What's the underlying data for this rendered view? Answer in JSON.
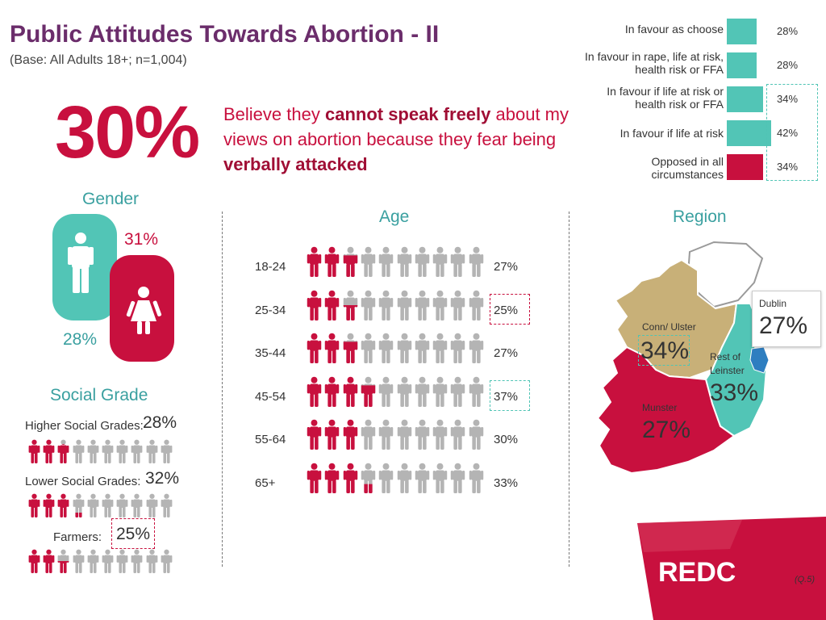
{
  "header": {
    "title": "Public Attitudes Towards Abortion - II",
    "subtitle": "(Base: All Adults 18+; n=1,004)"
  },
  "headline": {
    "big_stat": "30%",
    "part1": "Believe they ",
    "bold1": "cannot speak freely",
    "part2": " about my views on abortion because they fear being ",
    "bold2": "verbally attacked"
  },
  "colors": {
    "red": "#c8103e",
    "teal": "#52c5b6",
    "grey": "#b4b4b4",
    "purple": "#6b2d6b",
    "tan": "#c8b078"
  },
  "chart_data": [
    {
      "type": "bar",
      "categories": [
        "In favour as choose",
        "In favour in rape, life at risk, health risk or FFA",
        "In favour if life at risk or health risk or FFA",
        "In favour if life at risk",
        "Opposed in all circumstances"
      ],
      "values": [
        28,
        28,
        34,
        42,
        34
      ],
      "value_labels": [
        "28%",
        "28%",
        "34%",
        "42%",
        "34%"
      ],
      "colors": [
        "#52c5b6",
        "#52c5b6",
        "#52c5b6",
        "#52c5b6",
        "#c8103e"
      ],
      "xlim": [
        0,
        50
      ]
    },
    {
      "type": "bar",
      "title": "Age",
      "categories": [
        "18-24",
        "25-34",
        "35-44",
        "45-54",
        "55-64",
        "65+"
      ],
      "values": [
        27,
        25,
        27,
        37,
        30,
        33
      ],
      "value_labels": [
        "27%",
        "25%",
        "27%",
        "37%",
        "30%",
        "33%"
      ],
      "icon_count": 10
    },
    {
      "type": "bar",
      "title": "Social Grade",
      "categories": [
        "Higher Social Grades:",
        "Lower Social Grades:",
        "Farmers:"
      ],
      "values": [
        28,
        32,
        25
      ],
      "value_labels": [
        "28%",
        "32%",
        "25%"
      ],
      "icon_count": 10
    },
    {
      "type": "bar",
      "title": "Gender",
      "categories": [
        "Male",
        "Female"
      ],
      "values": [
        28,
        31
      ],
      "value_labels": [
        "28%",
        "31%"
      ]
    },
    {
      "type": "bar",
      "title": "Region",
      "categories": [
        "Dublin",
        "Conn/ Ulster",
        "Rest of Leinster",
        "Munster"
      ],
      "values": [
        27,
        34,
        33,
        27
      ],
      "value_labels": [
        "27%",
        "34%",
        "33%",
        "27%"
      ]
    }
  ],
  "footer": {
    "brand": "REDC",
    "question_ref": "(Q.5)"
  }
}
